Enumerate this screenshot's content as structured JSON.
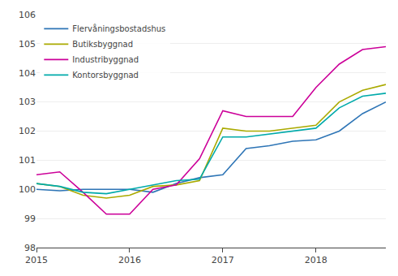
{
  "chart_data": {
    "type": "line",
    "categories": [
      "2015",
      null,
      null,
      null,
      "2016",
      null,
      null,
      null,
      "2017",
      null,
      null,
      null,
      "2018",
      null,
      null,
      null
    ],
    "series": [
      {
        "name": "Flervåningsbostadshus",
        "color": "#2E75B6",
        "values": [
          100.0,
          99.95,
          100.0,
          100.0,
          100.0,
          99.9,
          100.2,
          100.4,
          100.5,
          101.4,
          101.5,
          101.65,
          101.7,
          102.0,
          102.6,
          103.0
        ]
      },
      {
        "name": "Butiksbyggnad",
        "color": "#AAAA00",
        "values": [
          100.2,
          100.1,
          99.8,
          99.7,
          99.8,
          100.1,
          100.15,
          100.3,
          102.1,
          102.0,
          102.0,
          102.1,
          102.2,
          103.0,
          103.4,
          103.6
        ]
      },
      {
        "name": "Industribyggnad",
        "color": "#CC0099",
        "values": [
          100.5,
          100.6,
          99.9,
          99.15,
          99.15,
          100.0,
          100.15,
          101.05,
          102.7,
          102.5,
          102.5,
          102.5,
          103.5,
          104.3,
          104.8,
          104.9
        ]
      },
      {
        "name": "Kontorsbyggnad",
        "color": "#00AAAA",
        "values": [
          100.2,
          100.1,
          99.9,
          99.85,
          100.0,
          100.15,
          100.3,
          100.35,
          101.8,
          101.8,
          101.9,
          102.0,
          102.1,
          102.8,
          103.2,
          103.3
        ]
      }
    ],
    "ylim": [
      98,
      106
    ],
    "yticks": [
      98,
      99,
      100,
      101,
      102,
      103,
      104,
      105,
      106
    ],
    "grid": true,
    "legend": "upper left"
  }
}
